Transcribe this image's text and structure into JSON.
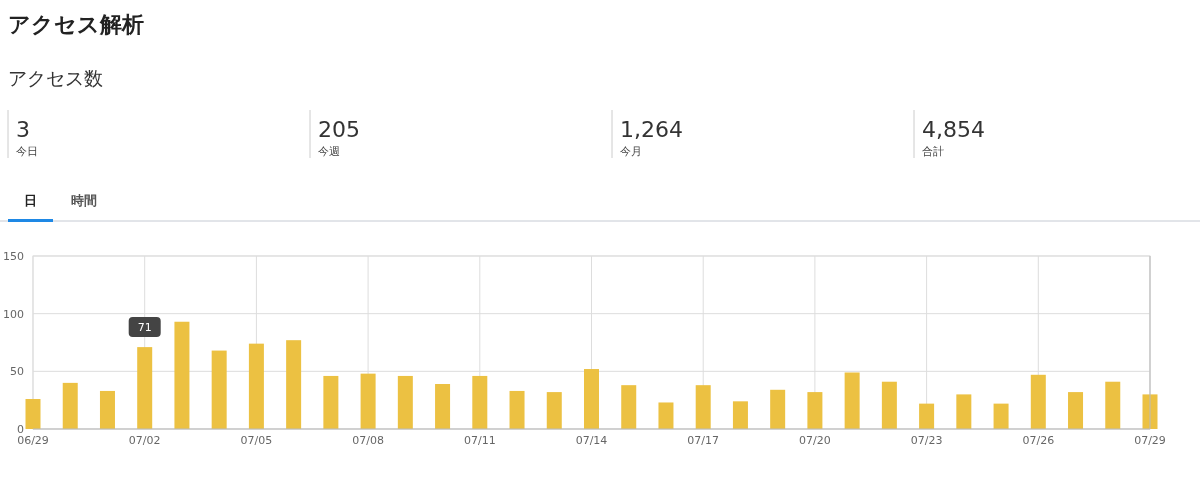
{
  "chart_data": [
    {
      "type": "other",
      "title": "アクセス解析",
      "subtitle": "アクセス数",
      "categories": [
        "今日",
        "今週",
        "今月",
        "合計"
      ],
      "value_labels": [
        "3",
        "205",
        "1,264",
        "4,854"
      ]
    },
    {
      "type": "bar",
      "categories": [
        "06/29",
        null,
        null,
        "07/02",
        null,
        null,
        "07/05",
        null,
        null,
        "07/08",
        null,
        null,
        "07/11",
        null,
        null,
        "07/14",
        null,
        null,
        "07/17",
        null,
        null,
        "07/20",
        null,
        null,
        "07/23",
        null,
        null,
        "07/26",
        null,
        null,
        "07/29"
      ],
      "values": [
        26,
        40,
        33,
        71,
        93,
        68,
        74,
        77,
        46,
        48,
        46,
        39,
        46,
        33,
        32,
        52,
        38,
        23,
        38,
        24,
        34,
        32,
        49,
        41,
        22,
        30,
        22,
        47,
        32,
        41,
        30
      ],
      "color": "#ecc142",
      "ylim": [
        0,
        150
      ],
      "yticks": [
        0,
        50,
        100,
        150
      ],
      "grid": true,
      "annotations": [
        "日",
        "時間",
        {
          "text": "71",
          "x": "07/02",
          "y": 71
        }
      ]
    }
  ]
}
